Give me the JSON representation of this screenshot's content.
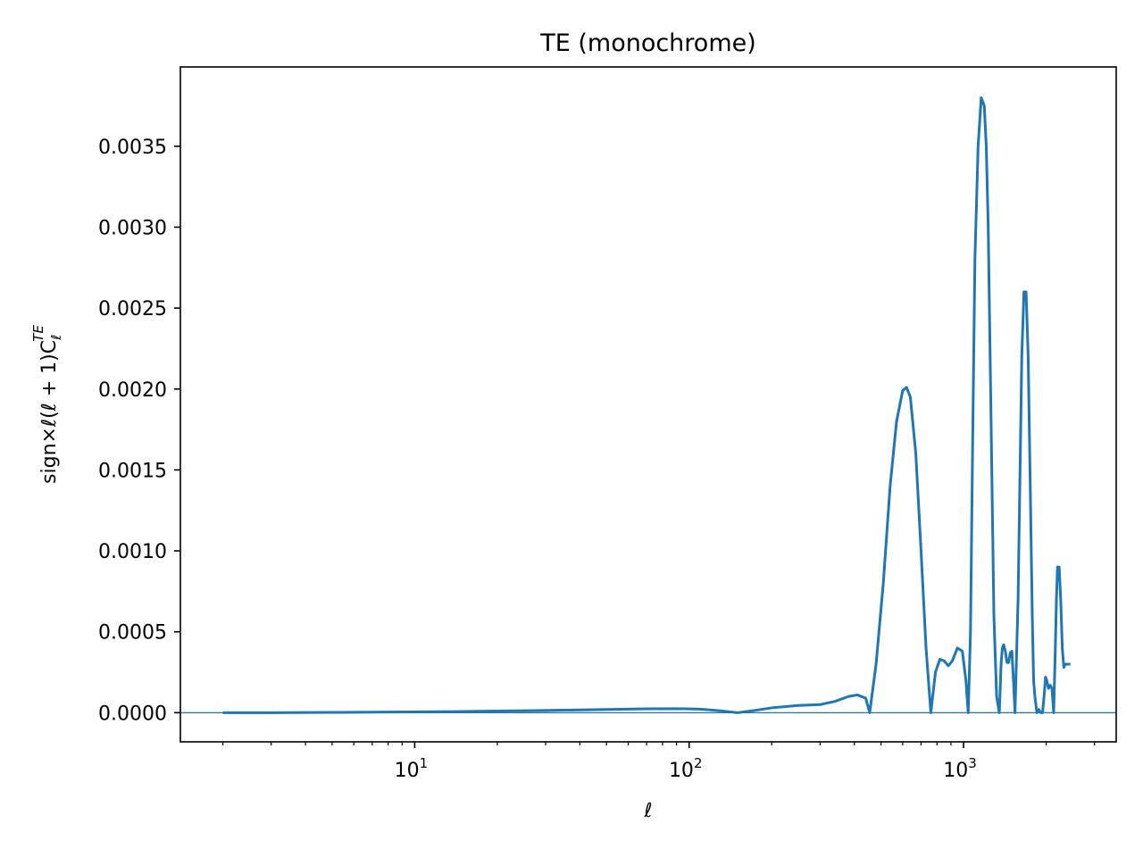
{
  "chart_data": {
    "type": "line",
    "title": "TE (monochrome)",
    "xlabel": "ℓ",
    "ylabel": "sign×ℓ(ℓ + 1)C_ℓ^TE",
    "ylabel_parts": {
      "main": "sign×ℓ(ℓ + 1)C",
      "sub": "ℓ",
      "sup": "TE"
    },
    "x_scale": "log",
    "xlim": [
      1.4,
      3600
    ],
    "ylim": [
      -0.00018,
      0.00399
    ],
    "x_ticks": [
      {
        "value": 10,
        "base": "10",
        "exp": "1"
      },
      {
        "value": 100,
        "base": "10",
        "exp": "2"
      },
      {
        "value": 1000,
        "base": "10",
        "exp": "3"
      }
    ],
    "y_ticks": [
      {
        "value": 0.0,
        "label": "0.0000"
      },
      {
        "value": 0.0005,
        "label": "0.0005"
      },
      {
        "value": 0.001,
        "label": "0.0010"
      },
      {
        "value": 0.0015,
        "label": "0.0015"
      },
      {
        "value": 0.002,
        "label": "0.0020"
      },
      {
        "value": 0.0025,
        "label": "0.0025"
      },
      {
        "value": 0.003,
        "label": "0.0030"
      },
      {
        "value": 0.0035,
        "label": "0.0035"
      }
    ],
    "grid": false,
    "legend": "none",
    "line_color": "#1f77b4",
    "reference_line": {
      "y": 0.0,
      "color": "#1f77b4"
    },
    "series": [
      {
        "x": [
          2,
          3,
          5,
          8,
          12,
          20,
          30,
          50,
          70,
          90,
          110,
          130,
          150,
          170,
          200,
          250,
          300,
          340,
          380,
          410,
          440,
          455,
          480,
          510,
          540,
          570,
          600,
          620,
          640,
          670,
          700,
          730,
          760,
          790,
          820,
          850,
          880,
          910,
          950,
          990,
          1020,
          1040,
          1060,
          1080,
          1100,
          1130,
          1160,
          1190,
          1210,
          1230,
          1260,
          1290,
          1320,
          1350,
          1370,
          1385,
          1400,
          1420,
          1440,
          1460,
          1480,
          1500,
          1520,
          1540,
          1580,
          1610,
          1630,
          1660,
          1690,
          1720,
          1750,
          1780,
          1800,
          1820,
          1850,
          1880,
          1910,
          1940,
          1965,
          1990,
          2010,
          2040,
          2070,
          2100,
          2130,
          2160,
          2180,
          2200,
          2230,
          2260,
          2290,
          2320,
          2350,
          2380,
          2410,
          2450
        ],
        "y": [
          0.0,
          0.0,
          2e-06,
          4e-06,
          6e-06,
          1e-05,
          1.4e-05,
          2e-05,
          2.4e-05,
          2.5e-05,
          2.2e-05,
          1.2e-05,
          0.0,
          1.2e-05,
          3e-05,
          4.5e-05,
          5e-05,
          7e-05,
          0.0001,
          0.00011,
          9e-05,
          0.0,
          0.0003,
          0.0008,
          0.0014,
          0.0018,
          0.00199,
          0.00201,
          0.00195,
          0.0016,
          0.001,
          0.0004,
          0.0,
          0.00025,
          0.00033,
          0.00032,
          0.00029,
          0.00032,
          0.0004,
          0.00038,
          0.0002,
          0.0,
          0.0005,
          0.0017,
          0.0028,
          0.0035,
          0.0038,
          0.00375,
          0.0035,
          0.003,
          0.0018,
          0.0006,
          0.0001,
          0.0,
          0.0003,
          0.0004,
          0.00042,
          0.00038,
          0.00031,
          0.00031,
          0.00037,
          0.00038,
          0.0002,
          0.0,
          0.0007,
          0.0016,
          0.0022,
          0.0026,
          0.0026,
          0.0022,
          0.0014,
          0.0006,
          0.0002,
          0.0001,
          0.0,
          2e-05,
          0.0,
          0.0,
          0.0001,
          0.00022,
          0.0002,
          0.00015,
          0.00017,
          0.00015,
          0.0,
          0.0004,
          0.0007,
          0.0009,
          0.0009,
          0.0007,
          0.0004,
          0.00028,
          0.0003,
          0.0003,
          0.0003,
          0.0003
        ]
      }
    ]
  }
}
